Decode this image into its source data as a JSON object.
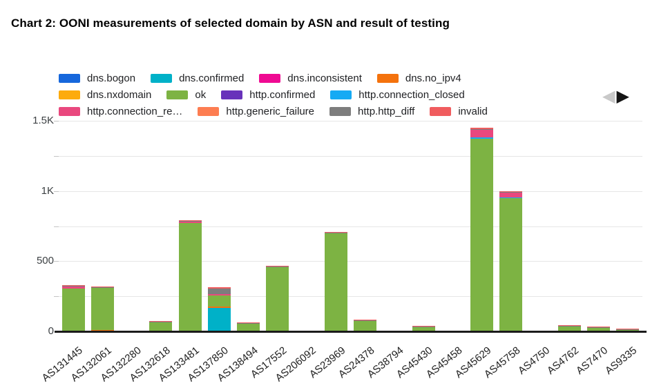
{
  "title": "Chart 2: OONI measurements of selected domain by ASN and result of testing",
  "legend_pager": {
    "prev_icon": "◀",
    "next_icon": "▶"
  },
  "colors": {
    "axis": "#1b1b1b",
    "grid": "#e6e6e6",
    "tick_dash": "#c4c4c4",
    "y_label": "#3c4043",
    "x_label": "#1f1f1f",
    "legend_text": "#202124",
    "pager_prev": "#c9c9c9",
    "pager_next": "#141414"
  },
  "chart_data": {
    "type": "bar",
    "stacked": true,
    "title": "Chart 2: OONI measurements of selected domain by ASN and result of testing",
    "xlabel": "",
    "ylabel": "",
    "ylim": [
      0,
      1500
    ],
    "grid": true,
    "legend_position": "top",
    "yticks": [
      {
        "label": "0",
        "value": 0
      },
      {
        "label": "500",
        "value": 500
      },
      {
        "label": "1K",
        "value": 1000
      },
      {
        "label": "1.5K",
        "value": 1500
      }
    ],
    "ytick_minor_step": 250,
    "categories": [
      "AS131445",
      "AS132061",
      "AS132280",
      "AS132618",
      "AS133481",
      "AS137850",
      "AS138494",
      "AS17552",
      "AS206092",
      "AS23969",
      "AS24378",
      "AS38794",
      "AS45430",
      "AS45458",
      "AS45629",
      "AS45758",
      "AS4750",
      "AS4762",
      "AS7470",
      "AS9335"
    ],
    "legend_rows": [
      [
        0,
        1,
        2,
        3
      ],
      [
        4,
        5,
        6,
        7
      ],
      [
        8,
        9,
        10,
        11
      ]
    ],
    "series": [
      {
        "name": "dns.bogon",
        "color": "#1667dc",
        "values": [
          0,
          0,
          0,
          0,
          0,
          0,
          0,
          0,
          0,
          0,
          0,
          0,
          0,
          0,
          0,
          0,
          0,
          0,
          0,
          0
        ]
      },
      {
        "name": "dns.confirmed",
        "color": "#00b1c8",
        "values": [
          0,
          0,
          0,
          0,
          0,
          165,
          0,
          0,
          0,
          0,
          0,
          0,
          0,
          0,
          0,
          0,
          0,
          0,
          0,
          0
        ]
      },
      {
        "name": "dns.inconsistent",
        "color": "#ef0a92",
        "values": [
          0,
          0,
          0,
          0,
          0,
          0,
          0,
          0,
          0,
          0,
          0,
          0,
          0,
          0,
          0,
          0,
          0,
          0,
          0,
          0
        ]
      },
      {
        "name": "dns.no_ipv4",
        "color": "#f4720d",
        "values": [
          0,
          8,
          0,
          0,
          0,
          8,
          0,
          0,
          0,
          0,
          0,
          0,
          0,
          0,
          0,
          0,
          0,
          0,
          0,
          2
        ]
      },
      {
        "name": "dns.nxdomain",
        "color": "#fdab0d",
        "values": [
          0,
          0,
          0,
          0,
          0,
          0,
          0,
          0,
          0,
          0,
          0,
          0,
          0,
          0,
          0,
          0,
          0,
          0,
          0,
          0
        ]
      },
      {
        "name": "ok",
        "color": "#7db343",
        "values": [
          305,
          298,
          0,
          64,
          772,
          80,
          55,
          455,
          0,
          700,
          72,
          0,
          30,
          0,
          1370,
          950,
          0,
          35,
          25,
          4
        ]
      },
      {
        "name": "http.confirmed",
        "color": "#6832ba",
        "values": [
          0,
          0,
          0,
          0,
          0,
          0,
          0,
          0,
          0,
          0,
          0,
          0,
          0,
          0,
          0,
          0,
          0,
          0,
          0,
          0
        ]
      },
      {
        "name": "http.connection_closed",
        "color": "#16aaf4",
        "values": [
          0,
          0,
          0,
          0,
          0,
          0,
          0,
          0,
          0,
          0,
          0,
          0,
          0,
          0,
          8,
          6,
          0,
          0,
          0,
          0
        ]
      },
      {
        "name": "http.connection_re…",
        "color": "#e9487e",
        "values": [
          15,
          0,
          0,
          0,
          10,
          8,
          0,
          0,
          0,
          0,
          0,
          0,
          0,
          0,
          52,
          35,
          0,
          0,
          0,
          0
        ]
      },
      {
        "name": "http.generic_failure",
        "color": "#fd7d51",
        "values": [
          0,
          0,
          0,
          0,
          0,
          0,
          0,
          0,
          0,
          0,
          0,
          0,
          0,
          0,
          0,
          0,
          0,
          0,
          0,
          0
        ]
      },
      {
        "name": "http.http_diff",
        "color": "#7d7d7d",
        "values": [
          4,
          4,
          0,
          2,
          3,
          40,
          3,
          2,
          0,
          3,
          2,
          0,
          2,
          0,
          3,
          5,
          0,
          2,
          4,
          4
        ]
      },
      {
        "name": "invalid",
        "color": "#f05c5e",
        "values": [
          5,
          5,
          0,
          3,
          4,
          8,
          4,
          3,
          0,
          4,
          3,
          0,
          2,
          0,
          8,
          5,
          0,
          3,
          4,
          3
        ]
      }
    ]
  }
}
